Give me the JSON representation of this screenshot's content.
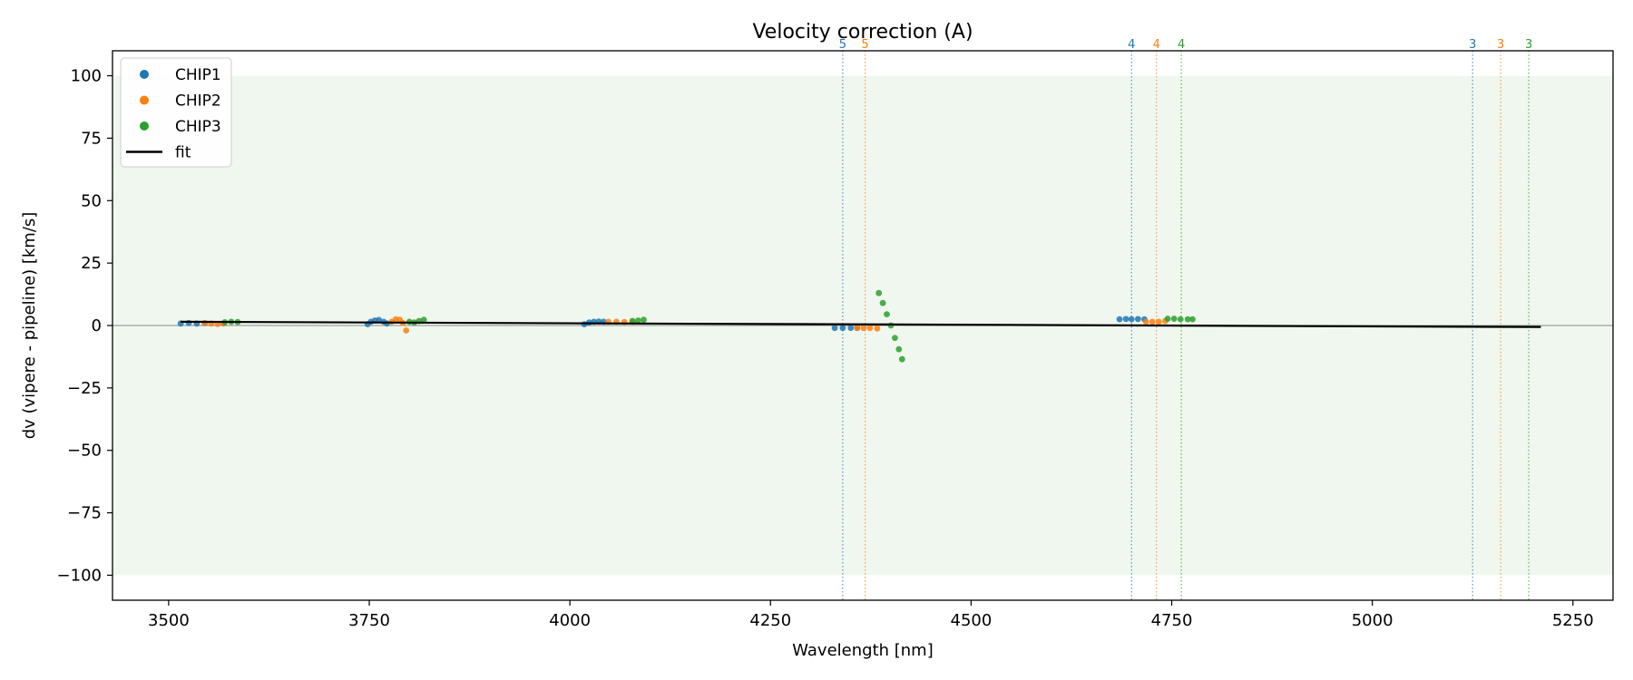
{
  "chart_data": {
    "type": "scatter",
    "title": "Velocity correction (A)",
    "xlabel": "Wavelength [nm]",
    "ylabel": "dv (vipere - pipeline) [km/s]",
    "xlim": [
      3430,
      5300
    ],
    "ylim": [
      -110,
      110
    ],
    "xticks": [
      3500,
      3750,
      4000,
      4250,
      4500,
      4750,
      5000,
      5250
    ],
    "yticks": [
      -100,
      -75,
      -50,
      -25,
      0,
      25,
      50,
      75,
      100
    ],
    "xtick_labels": [
      "3500",
      "3750",
      "4000",
      "4250",
      "4500",
      "4750",
      "5000",
      "5250"
    ],
    "ytick_labels": [
      "−100",
      "−75",
      "−50",
      "−25",
      "0",
      "25",
      "50",
      "75",
      "100"
    ],
    "shaded_band": [
      -100,
      100
    ],
    "zero_line": 0,
    "grid": false,
    "legend_position": "top-left",
    "legend": [
      "CHIP1",
      "CHIP2",
      "CHIP3",
      "fit"
    ],
    "colors": {
      "CHIP1": "#1f77b4",
      "CHIP2": "#ff7f0e",
      "CHIP3": "#2ca02c",
      "fit": "#000000",
      "band": "#e8f4e8"
    },
    "order_markers": [
      {
        "x": 4340,
        "label": "5",
        "series": "CHIP1"
      },
      {
        "x": 4368,
        "label": "5",
        "series": "CHIP2"
      },
      {
        "x": 4700,
        "label": "4",
        "series": "CHIP1"
      },
      {
        "x": 4731,
        "label": "4",
        "series": "CHIP2"
      },
      {
        "x": 4762,
        "label": "4",
        "series": "CHIP3"
      },
      {
        "x": 5125,
        "label": "3",
        "series": "CHIP1"
      },
      {
        "x": 5160,
        "label": "3",
        "series": "CHIP2"
      },
      {
        "x": 5195,
        "label": "3",
        "series": "CHIP3"
      }
    ],
    "series": [
      {
        "name": "CHIP1",
        "points": [
          [
            3515,
            0.8
          ],
          [
            3525,
            1.0
          ],
          [
            3535,
            0.8
          ],
          [
            3545,
            0.9
          ],
          [
            3748,
            0.5
          ],
          [
            3752,
            1.5
          ],
          [
            3757,
            2.0
          ],
          [
            3762,
            2.2
          ],
          [
            3768,
            1.5
          ],
          [
            3772,
            0.8
          ],
          [
            4018,
            0.5
          ],
          [
            4024,
            1.2
          ],
          [
            4030,
            1.5
          ],
          [
            4036,
            1.6
          ],
          [
            4042,
            1.5
          ],
          [
            4330,
            -1.0
          ],
          [
            4340,
            -1.0
          ],
          [
            4350,
            -1.0
          ],
          [
            4358,
            -1.0
          ],
          [
            4685,
            2.5
          ],
          [
            4693,
            2.6
          ],
          [
            4700,
            2.5
          ],
          [
            4708,
            2.6
          ],
          [
            4716,
            2.5
          ]
        ]
      },
      {
        "name": "CHIP2",
        "points": [
          [
            3545,
            1.0
          ],
          [
            3553,
            0.8
          ],
          [
            3561,
            0.6
          ],
          [
            3568,
            0.8
          ],
          [
            3778,
            1.5
          ],
          [
            3783,
            2.5
          ],
          [
            3788,
            2.3
          ],
          [
            3792,
            1.0
          ],
          [
            3796,
            -2.0
          ],
          [
            4048,
            1.5
          ],
          [
            4058,
            1.5
          ],
          [
            4068,
            1.4
          ],
          [
            4078,
            1.5
          ],
          [
            4358,
            -1.0
          ],
          [
            4366,
            -1.0
          ],
          [
            4374,
            -1.0
          ],
          [
            4383,
            -1.2
          ],
          [
            4718,
            1.5
          ],
          [
            4726,
            1.5
          ],
          [
            4734,
            1.5
          ],
          [
            4742,
            1.8
          ]
        ]
      },
      {
        "name": "CHIP3",
        "points": [
          [
            3570,
            1.3
          ],
          [
            3578,
            1.5
          ],
          [
            3586,
            1.4
          ],
          [
            3800,
            1.5
          ],
          [
            3806,
            1.2
          ],
          [
            3812,
            1.8
          ],
          [
            3818,
            2.3
          ],
          [
            4078,
            1.8
          ],
          [
            4085,
            2.0
          ],
          [
            4092,
            2.3
          ],
          [
            4385,
            13.0
          ],
          [
            4390,
            9.0
          ],
          [
            4395,
            4.5
          ],
          [
            4400,
            0.0
          ],
          [
            4405,
            -5.0
          ],
          [
            4410,
            -9.5
          ],
          [
            4414,
            -13.5
          ],
          [
            4745,
            2.7
          ],
          [
            4753,
            2.7
          ],
          [
            4761,
            2.5
          ],
          [
            4770,
            2.5
          ],
          [
            4776,
            2.5
          ]
        ]
      }
    ],
    "fit": {
      "name": "fit",
      "points": [
        [
          3515,
          1.5
        ],
        [
          5210,
          -0.6
        ]
      ]
    }
  }
}
